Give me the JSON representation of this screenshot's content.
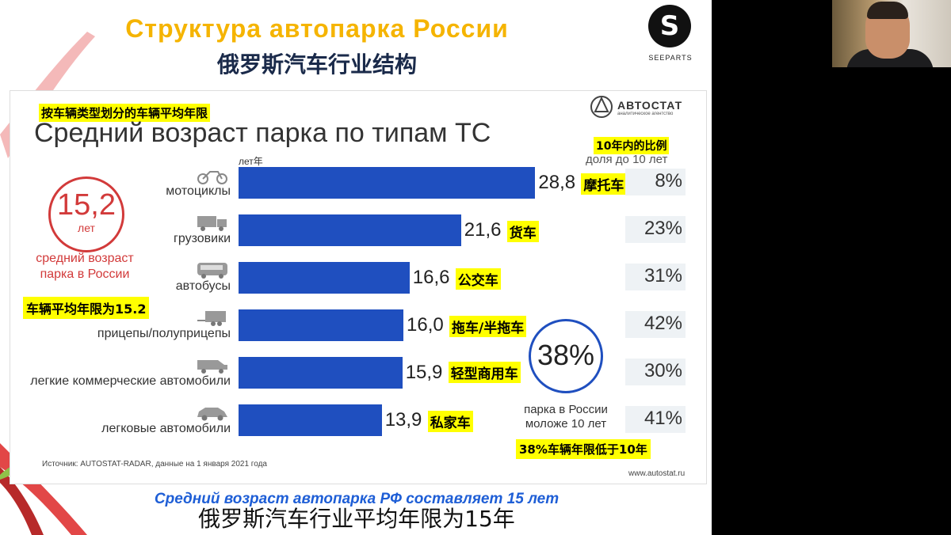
{
  "slide": {
    "title_ru": "Структура автопарка России",
    "title_zh": "俄罗斯汽车行业结构",
    "logo_text": "SEEPARTS",
    "logo_letter": "S",
    "bottom_ru": "Средний возраст автопарка РФ составляет 15 лет",
    "bottom_zh": "俄罗斯汽车行业平均年限为15年"
  },
  "panel": {
    "subtitle_zh": "按车辆类型划分的车辆平均年限",
    "heading_ru": "Средний возраст парка по типам ТС",
    "brand": "АВТОСТАТ",
    "brand_sub": "аналитическое агентство",
    "col_head_zh": "10年内的比例",
    "col_head_ru": "доля до 10 лет",
    "unit_label": "лет年",
    "avg_value": "15,2",
    "avg_unit": "лет",
    "avg_caption_line1": "средний возраст",
    "avg_caption_line2": "парка в России",
    "avg_zh": "车辆平均年限为15.2",
    "pct_value": "38%",
    "pct_caption_line1": "парка в России",
    "pct_caption_line2": "моложе 10 лет",
    "pct_zh": "38%车辆年限低于10年",
    "source": "Источник: AUTOSTAT-RADAR, данные на 1 января 2021 года",
    "site": "www.autostat.ru"
  },
  "chart_data": {
    "type": "bar",
    "orientation": "horizontal",
    "title": "Средний возраст парка по типам ТС",
    "unit": "лет",
    "categories": [
      "мотоциклы",
      "грузовики",
      "автобусы",
      "прицепы/полуприцепы",
      "легкие коммерческие автомобили",
      "легковые автомобили"
    ],
    "values": [
      28.8,
      21.6,
      16.6,
      16.0,
      15.9,
      13.9
    ],
    "value_labels": [
      "28,8",
      "21,6",
      "16,6",
      "16,0",
      "15,9",
      "13,9"
    ],
    "labels_zh": [
      "摩托车",
      "货车",
      "公交车",
      "拖车/半拖车",
      "轻型商用车",
      "私家车"
    ],
    "share_under_10": [
      "8%",
      "23%",
      "31%",
      "42%",
      "30%",
      "41%"
    ],
    "icons": [
      "motorcycle-icon",
      "truck-icon",
      "bus-icon",
      "trailer-icon",
      "van-icon",
      "car-icon"
    ],
    "bar_color": "#1f4fbf"
  }
}
